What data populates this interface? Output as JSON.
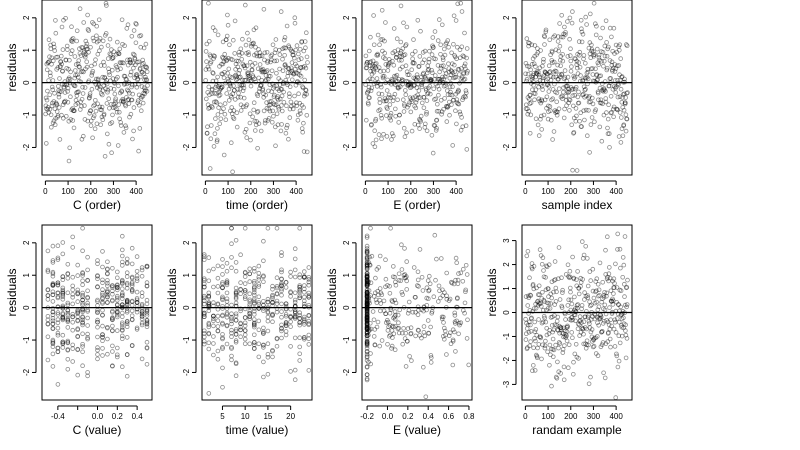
{
  "chart_data": [
    {
      "type": "scatter",
      "ylabel": "residuals",
      "xlabel": "C (order)",
      "xlim": [
        -15,
        470
      ],
      "ylim": [
        -2.85,
        2.55
      ],
      "xticks": [
        0,
        100,
        200,
        300,
        400
      ],
      "xtick_labels": [
        "0",
        "100",
        "200",
        "300",
        "400"
      ],
      "yticks": [
        -2,
        -1,
        0,
        1,
        2
      ],
      "reference_line_y": 0,
      "seed": 11,
      "n": 450,
      "x_kind": "index"
    },
    {
      "type": "scatter",
      "ylabel": "residuals",
      "xlabel": "time (order)",
      "xlim": [
        -15,
        470
      ],
      "ylim": [
        -2.85,
        2.55
      ],
      "xticks": [
        0,
        100,
        200,
        300,
        400
      ],
      "xtick_labels": [
        "0",
        "100",
        "200",
        "300",
        "400"
      ],
      "yticks": [
        -2,
        -1,
        0,
        1,
        2
      ],
      "reference_line_y": 0,
      "seed": 22,
      "n": 450,
      "x_kind": "index"
    },
    {
      "type": "scatter",
      "ylabel": "residuals",
      "xlabel": "E (order)",
      "xlim": [
        -15,
        470
      ],
      "ylim": [
        -2.85,
        2.55
      ],
      "xticks": [
        0,
        100,
        200,
        300,
        400
      ],
      "xtick_labels": [
        "0",
        "100",
        "200",
        "300",
        "400"
      ],
      "yticks": [
        -2,
        -1,
        0,
        1,
        2
      ],
      "reference_line_y": 0,
      "seed": 33,
      "n": 450,
      "x_kind": "index"
    },
    {
      "type": "scatter",
      "ylabel": "residuals",
      "xlabel": "sample index",
      "xlim": [
        -15,
        470
      ],
      "ylim": [
        -2.85,
        2.55
      ],
      "xticks": [
        0,
        100,
        200,
        300,
        400
      ],
      "xtick_labels": [
        "0",
        "100",
        "200",
        "300",
        "400"
      ],
      "yticks": [
        -2,
        -1,
        0,
        1,
        2
      ],
      "reference_line_y": 0,
      "seed": 44,
      "n": 450,
      "x_kind": "index"
    },
    {
      "type": "scatter",
      "ylabel": "residuals",
      "xlabel": "C (value)",
      "xlim": [
        -0.56,
        0.55
      ],
      "ylim": [
        -2.85,
        2.55
      ],
      "xticks": [
        -0.4,
        -0.2,
        0.0,
        0.2,
        0.4
      ],
      "xtick_labels": [
        "-0.4",
        "",
        "0.0",
        "0.2",
        "0.4"
      ],
      "yticks": [
        -2,
        -1,
        0,
        1,
        2
      ],
      "reference_line_y": 0,
      "seed": 55,
      "n": 450,
      "x_kind": "levels",
      "x_levels": [
        -0.5,
        -0.45,
        -0.4,
        -0.35,
        -0.3,
        -0.25,
        -0.2,
        -0.15,
        -0.1,
        0.0,
        0.05,
        0.1,
        0.15,
        0.2,
        0.25,
        0.3,
        0.35,
        0.4,
        0.45,
        0.5
      ]
    },
    {
      "type": "scatter",
      "ylabel": "residuals",
      "xlabel": "time (value)",
      "xlim": [
        0.5,
        24.7
      ],
      "ylim": [
        -2.85,
        2.55
      ],
      "xticks": [
        5,
        10,
        15,
        20
      ],
      "xtick_labels": [
        "5",
        "10",
        "15",
        "20"
      ],
      "yticks": [
        -2,
        -1,
        0,
        1,
        2
      ],
      "reference_line_y": 0,
      "seed": 66,
      "n": 450,
      "x_kind": "levels",
      "x_levels": [
        1,
        2,
        3,
        4,
        5,
        6,
        7,
        8,
        9,
        10,
        11,
        12,
        13,
        14,
        15,
        16,
        17,
        18,
        19,
        20,
        21,
        22,
        23,
        24
      ]
    },
    {
      "type": "scatter",
      "ylabel": "residuals",
      "xlabel": "E (value)",
      "xlim": [
        -0.25,
        0.83
      ],
      "ylim": [
        -2.85,
        2.55
      ],
      "xticks": [
        -0.2,
        0.0,
        0.2,
        0.4,
        0.6,
        0.8
      ],
      "xtick_labels": [
        "-0.2",
        "0.0",
        "0.2",
        "0.4",
        "0.6",
        "0.8"
      ],
      "yticks": [
        -2,
        -1,
        0,
        1,
        2
      ],
      "reference_line_y": 0,
      "seed": 77,
      "n": 450,
      "x_kind": "skewed"
    },
    {
      "type": "scatter",
      "ylabel": "residuals",
      "xlabel": "randam example",
      "xlim": [
        -15,
        470
      ],
      "ylim": [
        -3.65,
        3.65
      ],
      "xticks": [
        0,
        100,
        200,
        300,
        400
      ],
      "xtick_labels": [
        "0",
        "100",
        "200",
        "300",
        "400"
      ],
      "yticks": [
        -3,
        -2,
        -1,
        0,
        1,
        2,
        3
      ],
      "reference_line_y": 0,
      "seed": 88,
      "n": 450,
      "x_kind": "index"
    }
  ]
}
